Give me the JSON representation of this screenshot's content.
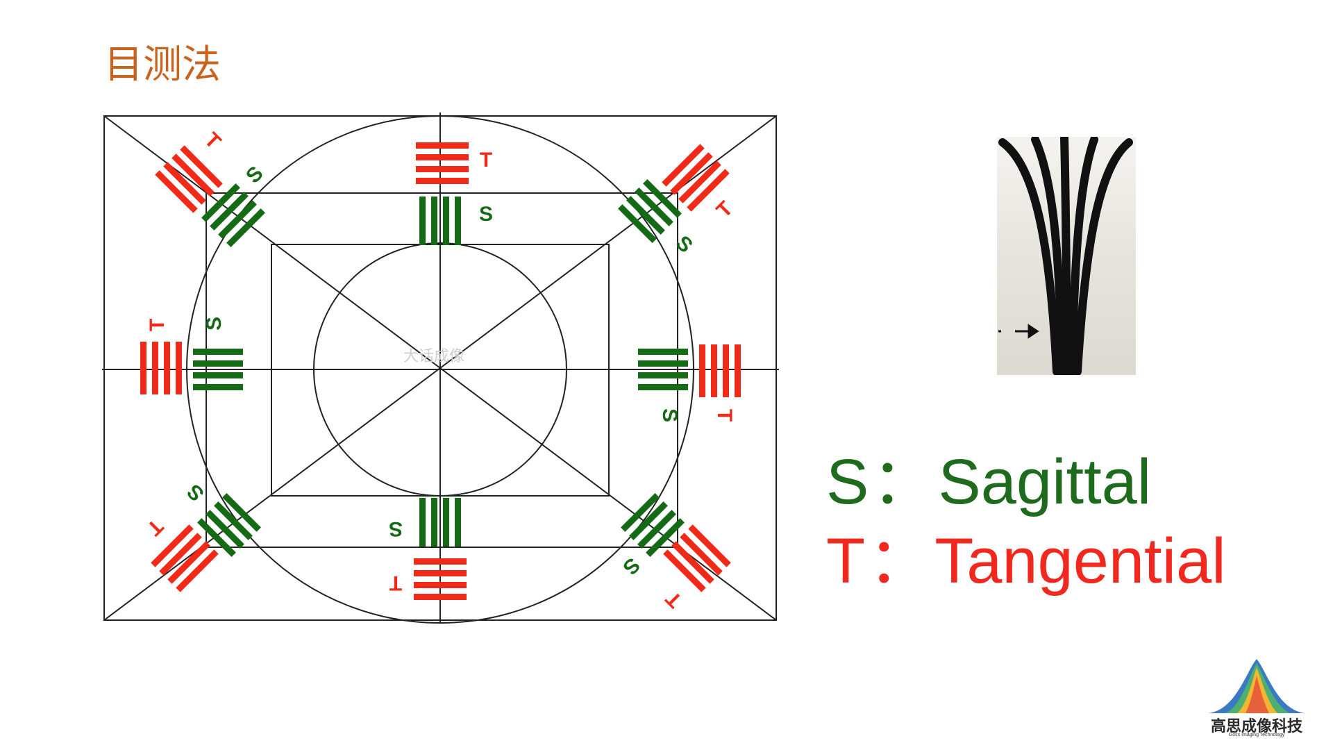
{
  "title": "目测法",
  "diagram": {
    "watermark": "大话成像",
    "s_label": "S",
    "t_label": "T",
    "colors": {
      "sagittal": "#156b15",
      "tangential": "#f02a18",
      "lines": "#222222"
    }
  },
  "legend": {
    "sagittal": {
      "letter": "S",
      "separator": "：",
      "word": "Sagittal"
    },
    "tangential": {
      "letter": "T",
      "separator": "：",
      "word": "Tangential"
    }
  },
  "logo": {
    "name": "高思成像科技",
    "subtitle": "Goss Imaging Technology"
  }
}
